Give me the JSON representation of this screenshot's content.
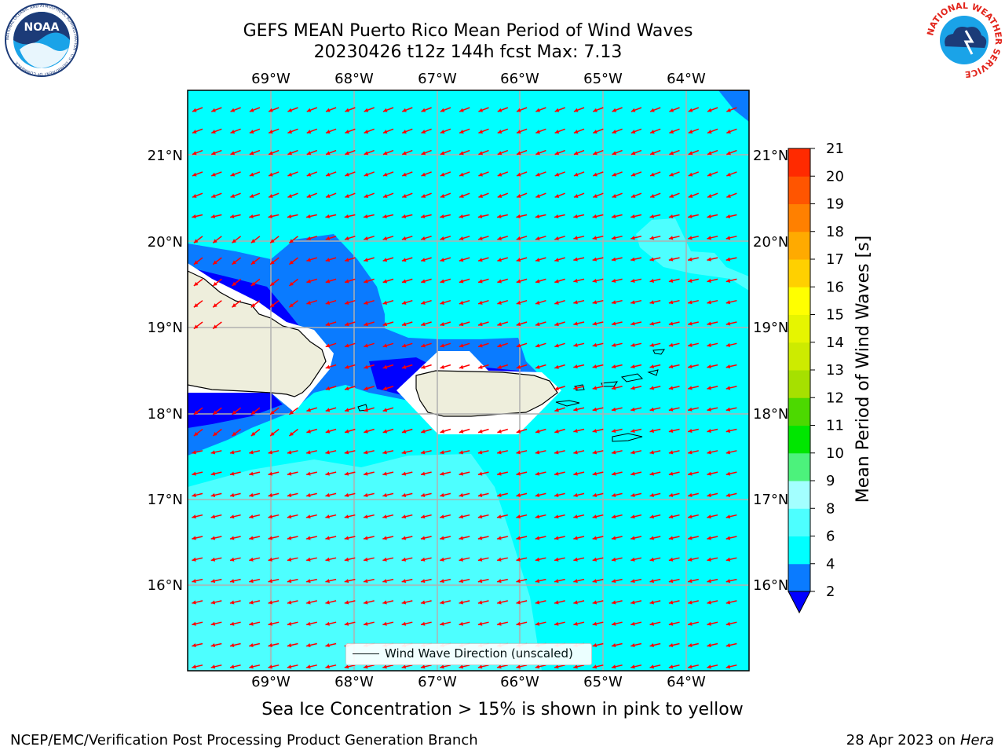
{
  "header": {
    "title_line1": "GEFS MEAN Puerto Rico Mean Period of Wind Waves",
    "title_line2": "20230426 t12z 144h fcst   Max: 7.13"
  },
  "logos": {
    "left": "NOAA",
    "left_ring_text": "NATIONAL OCEANIC AND ATMOSPHERIC ADMINISTRATION · U.S. DEPARTMENT OF COMMERCE",
    "right_ring_text": "NATIONAL WEATHER SERVICE"
  },
  "map": {
    "lon_labels": [
      "69°W",
      "68°W",
      "67°W",
      "66°W",
      "65°W",
      "64°W"
    ],
    "lat_labels": [
      "21°N",
      "20°N",
      "19°N",
      "18°N",
      "17°N",
      "16°N"
    ],
    "grid": true,
    "vector_color": "#ff0000",
    "colors": {
      "land": "#eeeedc",
      "band_2_4": "#0a7bff",
      "band_4_6": "#00ffff",
      "band_6_8": "#4dffff",
      "band_8_9": "#a3ffff",
      "below_2": "#0000ff"
    }
  },
  "legend": {
    "label": "Wind Wave Direction (unscaled)"
  },
  "colorbar": {
    "title": "Mean Period of Wind Waves [s]",
    "tick_labels": [
      "2",
      "4",
      "6",
      "8",
      "9",
      "10",
      "11",
      "12",
      "13",
      "14",
      "15",
      "16",
      "17",
      "18",
      "19",
      "20",
      "21"
    ],
    "band_colors": [
      "#0a7bff",
      "#00ffff",
      "#4dffff",
      "#a3ffff",
      "#4cf27c",
      "#00e600",
      "#4cd900",
      "#a6e000",
      "#cdeb00",
      "#e6f500",
      "#ffff00",
      "#ffd000",
      "#ffaa00",
      "#ff8000",
      "#ff5500",
      "#ff2a00",
      "#ff0000"
    ],
    "extend_min_color": "#0000ff"
  },
  "footnote": "Sea Ice Concentration > 15% is shown in pink to yellow",
  "footer": {
    "left": "NCEP/EMC/Verification Post Processing Product Generation Branch",
    "right_date": "28 Apr 2023 on",
    "right_host": "Hera"
  }
}
